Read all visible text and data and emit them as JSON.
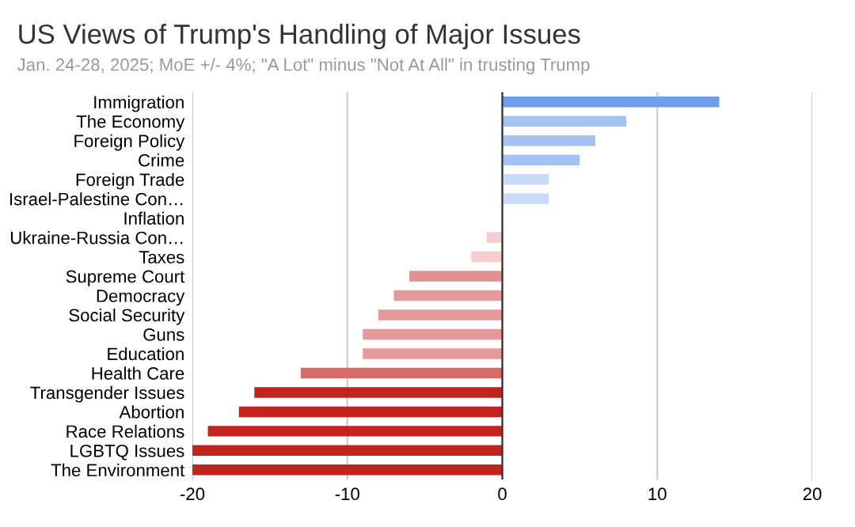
{
  "chart_data": {
    "type": "bar",
    "orientation": "horizontal",
    "title": "US Views of Trump's Handling of Major Issues",
    "subtitle": "Jan. 24-28, 2025; MoE +/- 4%; \"A Lot\" minus \"Not At All\" in trusting Trump",
    "categories": [
      "Immigration",
      "The Economy",
      "Foreign Policy",
      "Crime",
      "Foreign Trade",
      "Israel-Palestine Con…",
      "Inflation",
      "Ukraine-Russia Con…",
      "Taxes",
      "Supreme Court",
      "Democracy",
      "Social Security",
      "Guns",
      "Education",
      "Health Care",
      "Transgender Issues",
      "Abortion",
      "Race Relations",
      "LGBTQ Issues",
      "The Environment"
    ],
    "values": [
      14,
      8,
      6,
      5,
      3,
      3,
      0,
      -1,
      -2,
      -6,
      -7,
      -8,
      -9,
      -9,
      -13,
      -16,
      -17,
      -19,
      -20,
      -20
    ],
    "colors": [
      "#6d9eeb",
      "#a4c2f4",
      "#a4c2f4",
      "#a4c2f4",
      "#c9daf8",
      "#c9daf8",
      "#c9daf8",
      "#f4cccc",
      "#f4cccc",
      "#e09090",
      "#e49a9a",
      "#e49a9a",
      "#e49a9a",
      "#e49a9a",
      "#d86a6a",
      "#c0241c",
      "#c0241c",
      "#c0241c",
      "#c0241c",
      "#c0241c"
    ],
    "xlim": [
      -20,
      20
    ],
    "xticks": [
      -20,
      -10,
      0,
      10,
      20
    ],
    "grid": "x",
    "legend": false
  }
}
